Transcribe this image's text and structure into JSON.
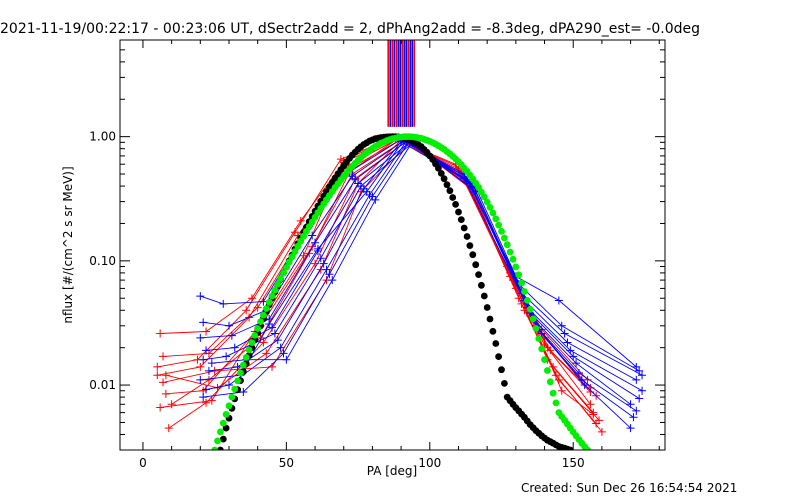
{
  "chart_data": {
    "type": "line",
    "title": "2021-11-19/00:22:17 - 00:23:06 UT, dSectr2add = 2, dPhAng2add = -8.3deg, dPA290_est= -0.0deg",
    "xlabel": "PA [deg]",
    "ylabel": "nflux [#/(cm^2 s sr MeV)]",
    "xlim": [
      -8,
      182
    ],
    "ylim": [
      0.003,
      6
    ],
    "yscale": "log",
    "x_ticks": [
      0,
      50,
      100,
      150
    ],
    "x_tick_labels": [
      "0",
      "50",
      "100",
      "150"
    ],
    "y_ticks": [
      0.01,
      0.1,
      1.0
    ],
    "y_tick_labels": [
      "0.01",
      "0.10",
      "1.00"
    ],
    "footer": "Created: Sun Dec 26 16:54:54 2021",
    "colors": {
      "red": "#ff0000",
      "blue": "#0000ff",
      "black": "#000000",
      "green": "#00ee00",
      "frame": "#000000"
    },
    "top_markers": {
      "ymin": 1.2,
      "ymax": 6,
      "lines": [
        {
          "x": 85.5,
          "color": "#ff0000"
        },
        {
          "x": 86.2,
          "color": "#0000ff"
        },
        {
          "x": 86.9,
          "color": "#ff0000"
        },
        {
          "x": 87.6,
          "color": "#0000ff"
        },
        {
          "x": 88.3,
          "color": "#ff0000"
        },
        {
          "x": 89.0,
          "color": "#0000ff"
        },
        {
          "x": 89.7,
          "color": "#0000ff"
        },
        {
          "x": 90.4,
          "color": "#ff0000"
        },
        {
          "x": 91.1,
          "color": "#0000ff"
        },
        {
          "x": 91.8,
          "color": "#0000ff"
        },
        {
          "x": 92.5,
          "color": "#ff0000"
        },
        {
          "x": 93.2,
          "color": "#0000ff"
        },
        {
          "x": 93.9,
          "color": "#0000ff"
        },
        {
          "x": 94.6,
          "color": "#ff0000"
        }
      ]
    },
    "model_curves": [
      {
        "color": "#000000",
        "x": [
          27,
          29,
          31,
          33,
          35,
          37,
          39,
          41,
          43,
          45,
          47,
          49,
          51,
          53,
          55,
          57,
          59,
          61,
          63,
          65,
          67,
          69,
          71,
          73,
          75,
          77,
          79,
          81,
          83,
          85,
          87,
          89,
          91,
          93,
          95,
          97,
          99,
          101,
          103,
          105,
          107,
          109,
          111,
          113,
          115,
          117,
          119,
          121,
          123,
          125,
          127,
          129,
          131,
          133,
          135,
          137,
          139,
          141,
          143,
          145,
          147,
          149
        ],
        "y": [
          0.003,
          0.0045,
          0.0065,
          0.0092,
          0.0128,
          0.0173,
          0.023,
          0.03,
          0.039,
          0.05,
          0.063,
          0.08,
          0.1,
          0.124,
          0.153,
          0.187,
          0.228,
          0.276,
          0.331,
          0.394,
          0.465,
          0.543,
          0.627,
          0.712,
          0.793,
          0.865,
          0.922,
          0.962,
          0.985,
          0.996,
          1.0,
          0.995,
          0.978,
          0.946,
          0.897,
          0.83,
          0.748,
          0.655,
          0.557,
          0.459,
          0.367,
          0.285,
          0.215,
          0.157,
          0.112,
          0.0775,
          0.0521,
          0.034,
          0.0216,
          0.0133,
          0.008,
          0.007,
          0.0062,
          0.0055,
          0.0048,
          0.0043,
          0.0039,
          0.0036,
          0.0034,
          0.0032,
          0.0031,
          0.003
        ]
      },
      {
        "color": "#00ee00",
        "x": [
          25,
          27,
          29,
          31,
          33,
          35,
          37,
          39,
          41,
          43,
          45,
          47,
          49,
          51,
          53,
          55,
          57,
          59,
          61,
          63,
          65,
          67,
          69,
          71,
          73,
          75,
          77,
          79,
          81,
          83,
          85,
          87,
          89,
          91,
          93,
          95,
          97,
          99,
          101,
          103,
          105,
          107,
          109,
          111,
          113,
          115,
          117,
          119,
          121,
          123,
          125,
          127,
          129,
          131,
          133,
          135,
          137,
          139,
          141,
          143,
          145,
          147,
          149,
          151,
          153,
          155
        ],
        "y": [
          0.003,
          0.0042,
          0.0058,
          0.008,
          0.0108,
          0.0145,
          0.0192,
          0.0251,
          0.0324,
          0.0413,
          0.052,
          0.0648,
          0.08,
          0.098,
          0.119,
          0.144,
          0.173,
          0.206,
          0.244,
          0.287,
          0.336,
          0.39,
          0.449,
          0.512,
          0.578,
          0.645,
          0.712,
          0.776,
          0.834,
          0.885,
          0.928,
          0.962,
          0.986,
          0.999,
          1.0,
          0.99,
          0.969,
          0.937,
          0.896,
          0.846,
          0.79,
          0.728,
          0.662,
          0.594,
          0.525,
          0.456,
          0.39,
          0.327,
          0.27,
          0.218,
          0.173,
          0.135,
          0.103,
          0.0772,
          0.0567,
          0.0407,
          0.0286,
          0.0196,
          0.0131,
          0.0086,
          0.006,
          0.0052,
          0.0045,
          0.0039,
          0.0034,
          0.003
        ]
      }
    ],
    "series": [
      {
        "color": "#ff0000",
        "x": [
          6,
          22,
          38,
          55,
          70,
          88,
          110,
          128,
          140,
          156
        ],
        "y": [
          0.026,
          0.027,
          0.05,
          0.21,
          0.62,
          0.97,
          0.57,
          0.08,
          0.024,
          0.0095
        ]
      },
      {
        "color": "#ff0000",
        "x": [
          7,
          23,
          40,
          57,
          72,
          90,
          112,
          130,
          142,
          158
        ],
        "y": [
          0.017,
          0.018,
          0.042,
          0.18,
          0.55,
          0.95,
          0.48,
          0.06,
          0.019,
          0.0082
        ]
      },
      {
        "color": "#ff0000",
        "x": [
          5,
          20,
          37,
          54,
          71,
          89,
          111,
          129,
          141,
          157
        ],
        "y": [
          0.012,
          0.014,
          0.035,
          0.16,
          0.58,
          0.96,
          0.52,
          0.07,
          0.016,
          0.006
        ]
      },
      {
        "color": "#ff0000",
        "x": [
          8,
          21,
          41,
          59,
          73,
          91,
          113,
          131,
          143,
          159
        ],
        "y": [
          0.0085,
          0.009,
          0.03,
          0.13,
          0.5,
          0.93,
          0.43,
          0.05,
          0.014,
          0.0052
        ]
      },
      {
        "color": "#ff0000",
        "x": [
          6,
          24,
          39,
          56,
          70,
          87,
          109,
          127,
          139,
          155
        ],
        "y": [
          0.0066,
          0.0075,
          0.027,
          0.11,
          0.64,
          0.98,
          0.6,
          0.09,
          0.028,
          0.011
        ]
      },
      {
        "color": "#ff0000",
        "x": [
          9,
          22,
          42,
          60,
          74,
          92,
          114,
          132,
          144,
          160
        ],
        "y": [
          0.0045,
          0.0072,
          0.022,
          0.095,
          0.46,
          0.92,
          0.4,
          0.045,
          0.012,
          0.0042
        ]
      },
      {
        "color": "#ff0000",
        "x": [
          5,
          19,
          36,
          53,
          69,
          88,
          110,
          128,
          140,
          156
        ],
        "y": [
          0.014,
          0.016,
          0.04,
          0.17,
          0.66,
          0.99,
          0.55,
          0.075,
          0.021,
          0.0088
        ]
      },
      {
        "color": "#ff0000",
        "x": [
          7,
          25,
          45,
          64,
          76,
          93,
          115,
          133,
          145,
          158
        ],
        "y": [
          0.0105,
          0.013,
          0.014,
          0.07,
          0.36,
          0.9,
          0.37,
          0.04,
          0.011,
          0.0049
        ]
      },
      {
        "color": "#ff0000",
        "x": [
          8,
          26,
          43,
          62,
          75,
          90,
          112,
          135,
          146,
          157
        ],
        "y": [
          0.012,
          0.0095,
          0.018,
          0.085,
          0.42,
          0.94,
          0.45,
          0.036,
          0.009,
          0.0058
        ]
      },
      {
        "color": "#ff0000",
        "x": [
          10,
          23,
          41,
          58,
          72,
          89,
          111,
          130,
          141,
          156
        ],
        "y": [
          0.007,
          0.011,
          0.024,
          0.115,
          0.52,
          0.97,
          0.5,
          0.065,
          0.02,
          0.007
        ]
      },
      {
        "color": "#0000ff",
        "x": [
          20,
          28,
          42,
          58,
          72,
          90,
          112,
          130,
          145,
          172
        ],
        "y": [
          0.052,
          0.045,
          0.047,
          0.19,
          0.52,
          0.95,
          0.5,
          0.075,
          0.048,
          0.014
        ]
      },
      {
        "color": "#0000ff",
        "x": [
          21,
          30,
          43,
          59,
          73,
          91,
          113,
          131,
          146,
          173
        ],
        "y": [
          0.032,
          0.03,
          0.04,
          0.16,
          0.48,
          0.93,
          0.45,
          0.065,
          0.03,
          0.013
        ]
      },
      {
        "color": "#0000ff",
        "x": [
          20,
          31,
          44,
          60,
          74,
          92,
          114,
          132,
          147,
          174
        ],
        "y": [
          0.024,
          0.025,
          0.034,
          0.14,
          0.45,
          0.92,
          0.42,
          0.055,
          0.026,
          0.012
        ]
      },
      {
        "color": "#0000ff",
        "x": [
          22,
          32,
          45,
          61,
          75,
          93,
          115,
          133,
          148,
          172
        ],
        "y": [
          0.019,
          0.02,
          0.029,
          0.12,
          0.42,
          0.9,
          0.38,
          0.048,
          0.022,
          0.011
        ]
      },
      {
        "color": "#0000ff",
        "x": [
          21,
          29,
          46,
          62,
          76,
          94,
          116,
          134,
          149,
          174
        ],
        "y": [
          0.016,
          0.017,
          0.026,
          0.105,
          0.4,
          0.89,
          0.36,
          0.042,
          0.019,
          0.009
        ]
      },
      {
        "color": "#0000ff",
        "x": [
          23,
          33,
          47,
          63,
          77,
          90,
          112,
          135,
          150,
          173
        ],
        "y": [
          0.013,
          0.014,
          0.023,
          0.095,
          0.38,
          0.91,
          0.46,
          0.038,
          0.017,
          0.0078
        ]
      },
      {
        "color": "#0000ff",
        "x": [
          20,
          34,
          44,
          61,
          78,
          91,
          113,
          136,
          151,
          170
        ],
        "y": [
          0.011,
          0.012,
          0.031,
          0.125,
          0.36,
          0.94,
          0.47,
          0.034,
          0.015,
          0.007
        ]
      },
      {
        "color": "#0000ff",
        "x": [
          22,
          30,
          48,
          64,
          79,
          92,
          114,
          137,
          152,
          172
        ],
        "y": [
          0.0092,
          0.01,
          0.02,
          0.085,
          0.34,
          0.93,
          0.43,
          0.03,
          0.0125,
          0.0062
        ]
      },
      {
        "color": "#0000ff",
        "x": [
          21,
          35,
          49,
          65,
          80,
          93,
          115,
          138,
          153,
          171
        ],
        "y": [
          0.008,
          0.0088,
          0.018,
          0.078,
          0.33,
          0.92,
          0.41,
          0.028,
          0.011,
          0.0055
        ]
      },
      {
        "color": "#0000ff",
        "x": [
          24,
          36,
          50,
          66,
          81,
          94,
          116,
          139,
          154,
          170
        ],
        "y": [
          0.015,
          0.016,
          0.016,
          0.07,
          0.31,
          0.91,
          0.39,
          0.026,
          0.01,
          0.0045
        ]
      }
    ]
  }
}
